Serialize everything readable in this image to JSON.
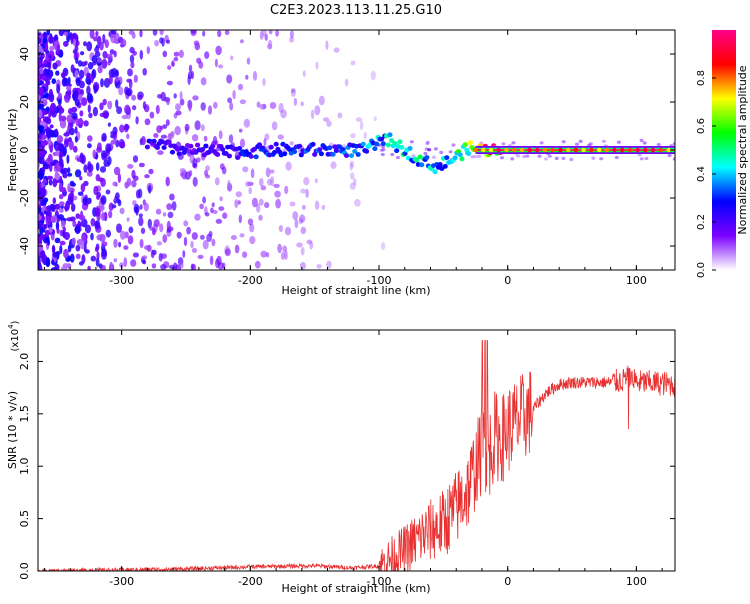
{
  "title": "C2E3.2023.113.11.25.G10",
  "chart_data": [
    {
      "type": "heatmap",
      "xlabel": "Height of straight line (km)",
      "ylabel": "Frequency (Hz)",
      "xlim": [
        -365,
        130
      ],
      "ylim": [
        -50,
        50
      ],
      "x_ticks": [
        -300,
        -200,
        -100,
        0,
        100
      ],
      "x_tick_labels": [
        "-300",
        "-200",
        "-100",
        "0",
        "100"
      ],
      "y_ticks": [
        -40,
        -20,
        0,
        20,
        40
      ],
      "y_tick_labels": [
        "-40",
        "-20",
        "0",
        "20",
        "40"
      ],
      "colorbar": {
        "label": "Normalized spectral amplitude",
        "range": [
          0,
          1
        ],
        "ticks": [
          0.0,
          0.2,
          0.4,
          0.6,
          0.8
        ],
        "tick_labels": [
          "0.0",
          "0.2",
          "0.4",
          "0.6",
          "0.8"
        ],
        "colors": [
          "#ffffff",
          "#7b00ff",
          "#0000ff",
          "#00ffff",
          "#00ff00",
          "#ffff00",
          "#ff0000",
          "#ff0088"
        ]
      },
      "carrier_trace": [
        {
          "x": -275,
          "f": 2,
          "amp": 0.25
        },
        {
          "x": -250,
          "f": 0,
          "amp": 0.2
        },
        {
          "x": -220,
          "f": -1,
          "amp": 0.25
        },
        {
          "x": -180,
          "f": 0,
          "amp": 0.3
        },
        {
          "x": -140,
          "f": 0,
          "amp": 0.3
        },
        {
          "x": -110,
          "f": 0,
          "amp": 0.35
        },
        {
          "x": -95,
          "f": 5,
          "amp": 0.4
        },
        {
          "x": -80,
          "f": 0,
          "amp": 0.45
        },
        {
          "x": -65,
          "f": -5,
          "amp": 0.45
        },
        {
          "x": -55,
          "f": -7,
          "amp": 0.4
        },
        {
          "x": -40,
          "f": -3,
          "amp": 0.5
        },
        {
          "x": -30,
          "f": 1,
          "amp": 0.6
        },
        {
          "x": -20,
          "f": 0,
          "amp": 0.8
        },
        {
          "x": 0,
          "f": 0,
          "amp": 0.9
        },
        {
          "x": 50,
          "f": 0,
          "amp": 0.95
        },
        {
          "x": 100,
          "f": 0,
          "amp": 0.95
        },
        {
          "x": 130,
          "f": 0,
          "amp": 0.95
        }
      ]
    },
    {
      "type": "line",
      "xlabel": "Height of straight line (km)",
      "ylabel": "SNR (10 * v/v)",
      "y_multiplier": "(x10",
      "y_multiplier_exp": "4",
      "y_multiplier_close": ")",
      "xlim": [
        -365,
        130
      ],
      "ylim": [
        0,
        2.3
      ],
      "x_ticks": [
        -300,
        -200,
        -100,
        0,
        100
      ],
      "x_tick_labels": [
        "-300",
        "-200",
        "-100",
        "0",
        "100"
      ],
      "y_ticks": [
        0.0,
        0.5,
        1.0,
        1.5,
        2.0
      ],
      "y_tick_labels": [
        "0.0",
        "0.5",
        "1.0",
        "1.5",
        "2.0"
      ],
      "line_color": "#e83030",
      "series": [
        {
          "x": [
            -365,
            -300,
            -250,
            -200,
            -150,
            -120,
            -100,
            -80,
            -65,
            -50,
            -40,
            -30,
            -25,
            -20,
            -15,
            -10,
            -5,
            0,
            10,
            20,
            30,
            40,
            50,
            60,
            70,
            80,
            90,
            95,
            100,
            110,
            120,
            130
          ],
          "y": [
            0.0,
            0.01,
            0.02,
            0.04,
            0.05,
            0.03,
            0.05,
            0.2,
            0.35,
            0.45,
            0.6,
            0.8,
            1.0,
            1.15,
            1.1,
            1.3,
            1.25,
            1.35,
            1.45,
            1.55,
            1.7,
            1.78,
            1.8,
            1.8,
            1.8,
            1.8,
            1.82,
            1.85,
            1.8,
            1.8,
            1.79,
            1.78
          ]
        }
      ]
    }
  ]
}
